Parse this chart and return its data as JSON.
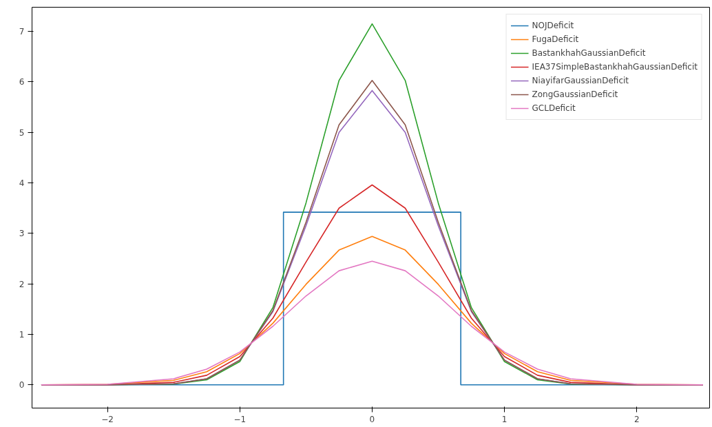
{
  "chart_data": {
    "type": "line",
    "x": [
      -2.5,
      -2,
      -1.5,
      -1.25,
      -1,
      -0.75,
      -0.5,
      -0.25,
      0,
      0.25,
      0.5,
      0.75,
      1,
      1.25,
      1.5,
      2,
      2.5
    ],
    "series": [
      {
        "name": "NOJDeficit",
        "color": "#1f77b4",
        "x": [
          -2.5,
          -0.67,
          -0.67,
          0.67,
          0.67,
          2.5
        ],
        "values": [
          0,
          0,
          3.42,
          3.42,
          0,
          0
        ]
      },
      {
        "name": "FugaDeficit",
        "color": "#ff7f0e",
        "values": [
          0,
          0.01,
          0.09,
          0.26,
          0.62,
          1.22,
          1.99,
          2.67,
          2.94,
          2.67,
          1.99,
          1.22,
          0.62,
          0.26,
          0.09,
          0.01,
          0
        ]
      },
      {
        "name": "BastankhahGaussianDeficit",
        "color": "#2ca02c",
        "values": [
          0,
          0,
          0.015,
          0.1,
          0.46,
          1.53,
          3.6,
          6.03,
          7.15,
          6.03,
          3.6,
          1.53,
          0.46,
          0.1,
          0.015,
          0,
          0
        ]
      },
      {
        "name": "IEA37SimpleBastankhahGaussianDeficit",
        "color": "#d62728",
        "values": [
          0,
          0,
          0.05,
          0.19,
          0.56,
          1.32,
          2.43,
          3.5,
          3.96,
          3.5,
          2.43,
          1.32,
          0.56,
          0.19,
          0.05,
          0,
          0
        ]
      },
      {
        "name": "NiayifarGaussianDeficit",
        "color": "#9467bd",
        "values": [
          0,
          0,
          0.02,
          0.12,
          0.49,
          1.45,
          3.15,
          5.0,
          5.83,
          5.0,
          3.15,
          1.45,
          0.49,
          0.12,
          0.02,
          0,
          0
        ]
      },
      {
        "name": "ZongGaussianDeficit",
        "color": "#8c564b",
        "values": [
          0,
          0,
          0.02,
          0.12,
          0.49,
          1.47,
          3.22,
          5.15,
          6.03,
          5.15,
          3.22,
          1.47,
          0.49,
          0.12,
          0.02,
          0,
          0
        ]
      },
      {
        "name": "GCLDeficit",
        "color": "#e377c2",
        "values": [
          0,
          0.01,
          0.12,
          0.31,
          0.65,
          1.16,
          1.76,
          2.26,
          2.45,
          2.26,
          1.76,
          1.16,
          0.65,
          0.31,
          0.12,
          0.01,
          0
        ]
      }
    ],
    "xlim": [
      -2.57,
      2.55
    ],
    "ylim": [
      -0.46,
      7.48
    ],
    "xticks": [
      {
        "value": -2,
        "label": "−2"
      },
      {
        "value": -1,
        "label": "−1"
      },
      0,
      1,
      2
    ],
    "yticks": [
      0,
      1,
      2,
      3,
      4,
      5,
      6,
      7
    ],
    "legend": "top right",
    "grid": false
  }
}
